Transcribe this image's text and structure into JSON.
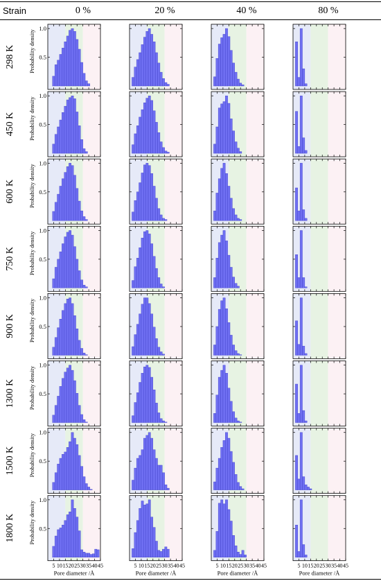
{
  "table": {
    "strain_label": "Strain",
    "strain_cols": [
      "0 %",
      "20 %",
      "40 %",
      "80 %"
    ],
    "row_labels": [
      "298 K",
      "450 K",
      "600 K",
      "750 K",
      "900 K",
      "1300 K",
      "1500 K",
      "1800 K"
    ]
  },
  "axis_text": {
    "ylabel": "Probability density",
    "xlabel": "Pore diameter /Å",
    "yticks": [
      "1.0",
      "0.5"
    ],
    "xticks": [
      "5",
      "10",
      "15",
      "20",
      "25",
      "30",
      "35",
      "40",
      "45"
    ]
  },
  "colors": {
    "bar": "#6f6ff2",
    "bar_edge": "#4040c8",
    "zone_small": "#e6eaf8",
    "zone_medium": "#e7f3e3",
    "zone_large": "#fcf1f4"
  },
  "chart_data": {
    "type": "bar",
    "xlim": [
      0,
      45
    ],
    "ylim": [
      0,
      1.05
    ],
    "bin_width": 2,
    "zones": [
      {
        "from": 0,
        "to": 15,
        "color_key": "zone_small"
      },
      {
        "from": 15,
        "to": 30,
        "color_key": "zone_medium"
      },
      {
        "from": 30,
        "to": 45,
        "color_key": "zone_large"
      }
    ],
    "bin_starts": {
      "0 %": [
        4,
        6,
        8,
        10,
        12,
        14,
        16,
        18,
        20,
        22,
        24,
        26,
        28,
        30,
        32,
        34,
        36,
        38,
        40,
        42
      ],
      "20 %": [
        2,
        4,
        6,
        8,
        10,
        12,
        14,
        16,
        18,
        20,
        22,
        24,
        26,
        28,
        30,
        32,
        34,
        36,
        38,
        40
      ],
      "40 %": [
        2,
        4,
        6,
        8,
        10,
        12,
        14,
        16,
        18,
        20,
        22,
        24,
        26,
        28,
        30,
        32,
        34
      ],
      "80 %": [
        2,
        4,
        6,
        8,
        10,
        12,
        14
      ]
    },
    "series": {
      "298 K": {
        "0 %": [
          0.17,
          0.37,
          0.45,
          0.55,
          0.66,
          0.77,
          0.87,
          0.97,
          1.0,
          0.95,
          0.81,
          0.64,
          0.41,
          0.22,
          0.09,
          0.04,
          0,
          0,
          0,
          0
        ],
        "20 %": [
          0.15,
          0.33,
          0.46,
          0.58,
          0.72,
          0.85,
          0.95,
          1.0,
          0.9,
          0.77,
          0.58,
          0.4,
          0.24,
          0.13,
          0.06,
          0.03,
          0,
          0,
          0,
          0
        ],
        "40 %": [
          0.16,
          0.48,
          0.73,
          0.84,
          0.9,
          1.0,
          0.86,
          0.62,
          0.4,
          0.24,
          0.12,
          0.05,
          0.02,
          0,
          0,
          0,
          0
        ],
        "80 %": [
          0.77,
          0.15,
          1.0,
          0.3,
          0.04,
          0,
          0
        ]
      },
      "450 K": {
        "0 %": [
          0.16,
          0.33,
          0.46,
          0.58,
          0.71,
          0.82,
          0.93,
          0.97,
          1.0,
          0.95,
          0.72,
          0.48,
          0.24,
          0.08,
          0.03,
          0,
          0,
          0,
          0,
          0
        ],
        "20 %": [
          0.15,
          0.34,
          0.48,
          0.63,
          0.76,
          0.88,
          0.96,
          1.0,
          0.92,
          0.74,
          0.54,
          0.36,
          0.2,
          0.1,
          0.04,
          0.02,
          0,
          0,
          0,
          0
        ],
        "40 %": [
          0.16,
          0.46,
          0.79,
          0.86,
          0.9,
          1.0,
          0.87,
          0.6,
          0.39,
          0.2,
          0.09,
          0.03,
          0,
          0,
          0,
          0,
          0
        ],
        "80 %": [
          0.73,
          0.12,
          1.0,
          0.27,
          0.05,
          0,
          0
        ]
      },
      "600 K": {
        "0 %": [
          0.16,
          0.32,
          0.46,
          0.6,
          0.73,
          0.84,
          0.94,
          1.0,
          0.96,
          0.79,
          0.56,
          0.34,
          0.17,
          0.07,
          0.02,
          0,
          0,
          0,
          0,
          0
        ],
        "20 %": [
          0.15,
          0.35,
          0.5,
          0.66,
          0.83,
          0.97,
          1.0,
          0.96,
          0.82,
          0.6,
          0.39,
          0.21,
          0.1,
          0.04,
          0.02,
          0,
          0,
          0,
          0,
          0
        ],
        "40 %": [
          0.17,
          0.48,
          0.73,
          0.91,
          1.0,
          0.82,
          0.6,
          0.39,
          0.21,
          0.1,
          0.04,
          0.02,
          0,
          0,
          0,
          0,
          0
        ],
        "80 %": [
          0.57,
          0.17,
          1.0,
          0.19,
          0.04,
          0,
          0
        ]
      },
      "750 K": {
        "0 %": [
          0.16,
          0.36,
          0.5,
          0.63,
          0.77,
          0.89,
          0.97,
          1.0,
          0.92,
          0.72,
          0.5,
          0.3,
          0.14,
          0.05,
          0.02,
          0,
          0,
          0,
          0,
          0
        ],
        "20 %": [
          0.13,
          0.37,
          0.52,
          0.7,
          0.87,
          0.98,
          1.0,
          0.94,
          0.77,
          0.55,
          0.34,
          0.18,
          0.07,
          0.02,
          0,
          0,
          0,
          0,
          0,
          0
        ],
        "40 %": [
          0.18,
          0.52,
          0.79,
          0.92,
          1.0,
          0.82,
          0.57,
          0.36,
          0.19,
          0.08,
          0.03,
          0,
          0,
          0,
          0,
          0,
          0
        ],
        "80 %": [
          0.58,
          0.18,
          1.0,
          0.18,
          0.02,
          0,
          0
        ]
      },
      "900 K": {
        "0 %": [
          0.14,
          0.31,
          0.48,
          0.63,
          0.78,
          0.9,
          0.98,
          1.0,
          0.9,
          0.69,
          0.46,
          0.26,
          0.12,
          0.04,
          0.01,
          0,
          0,
          0,
          0,
          0
        ],
        "20 %": [
          0.15,
          0.36,
          0.54,
          0.72,
          0.89,
          1.0,
          1.0,
          0.9,
          0.72,
          0.49,
          0.29,
          0.14,
          0.06,
          0.02,
          0,
          0,
          0,
          0,
          0,
          0
        ],
        "40 %": [
          0.18,
          0.5,
          0.8,
          0.95,
          1.0,
          0.81,
          0.57,
          0.35,
          0.18,
          0.08,
          0.03,
          0.01,
          0,
          0,
          0,
          0,
          0
        ],
        "80 %": [
          0.6,
          0.19,
          1.0,
          0.16,
          0.03,
          0,
          0
        ]
      },
      "1300 K": {
        "0 %": [
          0.13,
          0.3,
          0.46,
          0.63,
          0.77,
          0.88,
          0.95,
          1.0,
          0.91,
          0.73,
          0.51,
          0.3,
          0.14,
          0.05,
          0.01,
          0,
          0,
          0,
          0,
          0
        ],
        "20 %": [
          0.12,
          0.35,
          0.52,
          0.7,
          0.86,
          0.97,
          1.0,
          0.96,
          0.79,
          0.57,
          0.34,
          0.17,
          0.07,
          0.03,
          0.01,
          0,
          0,
          0,
          0,
          0
        ],
        "40 %": [
          0.16,
          0.48,
          0.79,
          0.91,
          1.0,
          0.86,
          0.6,
          0.37,
          0.19,
          0.08,
          0.03,
          0.01,
          0,
          0,
          0,
          0,
          0
        ],
        "80 %": [
          0.67,
          0.16,
          1.0,
          0.21,
          0.03,
          0,
          0
        ]
      },
      "1500 K": {
        "0 %": [
          0.13,
          0.3,
          0.45,
          0.55,
          0.62,
          0.66,
          0.74,
          0.84,
          1.0,
          0.9,
          0.79,
          0.6,
          0.41,
          0.23,
          0.11,
          0.05,
          0.01,
          0,
          0,
          0
        ],
        "20 %": [
          0.17,
          0.38,
          0.55,
          0.6,
          0.7,
          0.9,
          0.95,
          1.0,
          0.9,
          0.7,
          0.55,
          0.43,
          0.43,
          0.3,
          0.09,
          0.03,
          0,
          0,
          0,
          0
        ],
        "40 %": [
          0.14,
          0.38,
          0.55,
          0.74,
          0.86,
          1.0,
          0.9,
          0.67,
          0.48,
          0.27,
          0.13,
          0.06,
          0.02,
          0,
          0,
          0,
          0
        ],
        "80 %": [
          0.6,
          0.19,
          1.0,
          0.23,
          0.09,
          0.05,
          0.02
        ]
      },
      "1800 K": {
        "0 %": [
          0.19,
          0.37,
          0.48,
          0.51,
          0.56,
          0.64,
          0.74,
          0.79,
          1.0,
          0.85,
          0.7,
          0.46,
          0.13,
          0.09,
          0.07,
          0.07,
          0.05,
          0.06,
          0.14,
          0.13
        ],
        "20 %": [
          0.15,
          0.43,
          0.64,
          0.85,
          0.98,
          0.91,
          0.93,
          1.0,
          0.7,
          0.52,
          0.28,
          0.12,
          0.1,
          0.14,
          0.18,
          0.14,
          0,
          0,
          0,
          0
        ],
        "40 %": [
          0.12,
          0.45,
          0.94,
          1.0,
          0.93,
          1.0,
          0.83,
          0.63,
          0.38,
          0.2,
          0.09,
          0.05,
          0.12,
          0.04,
          0,
          0,
          0
        ],
        "80 %": [
          0.56,
          0.1,
          1.0,
          0.22,
          0.04,
          0,
          0
        ]
      }
    }
  }
}
